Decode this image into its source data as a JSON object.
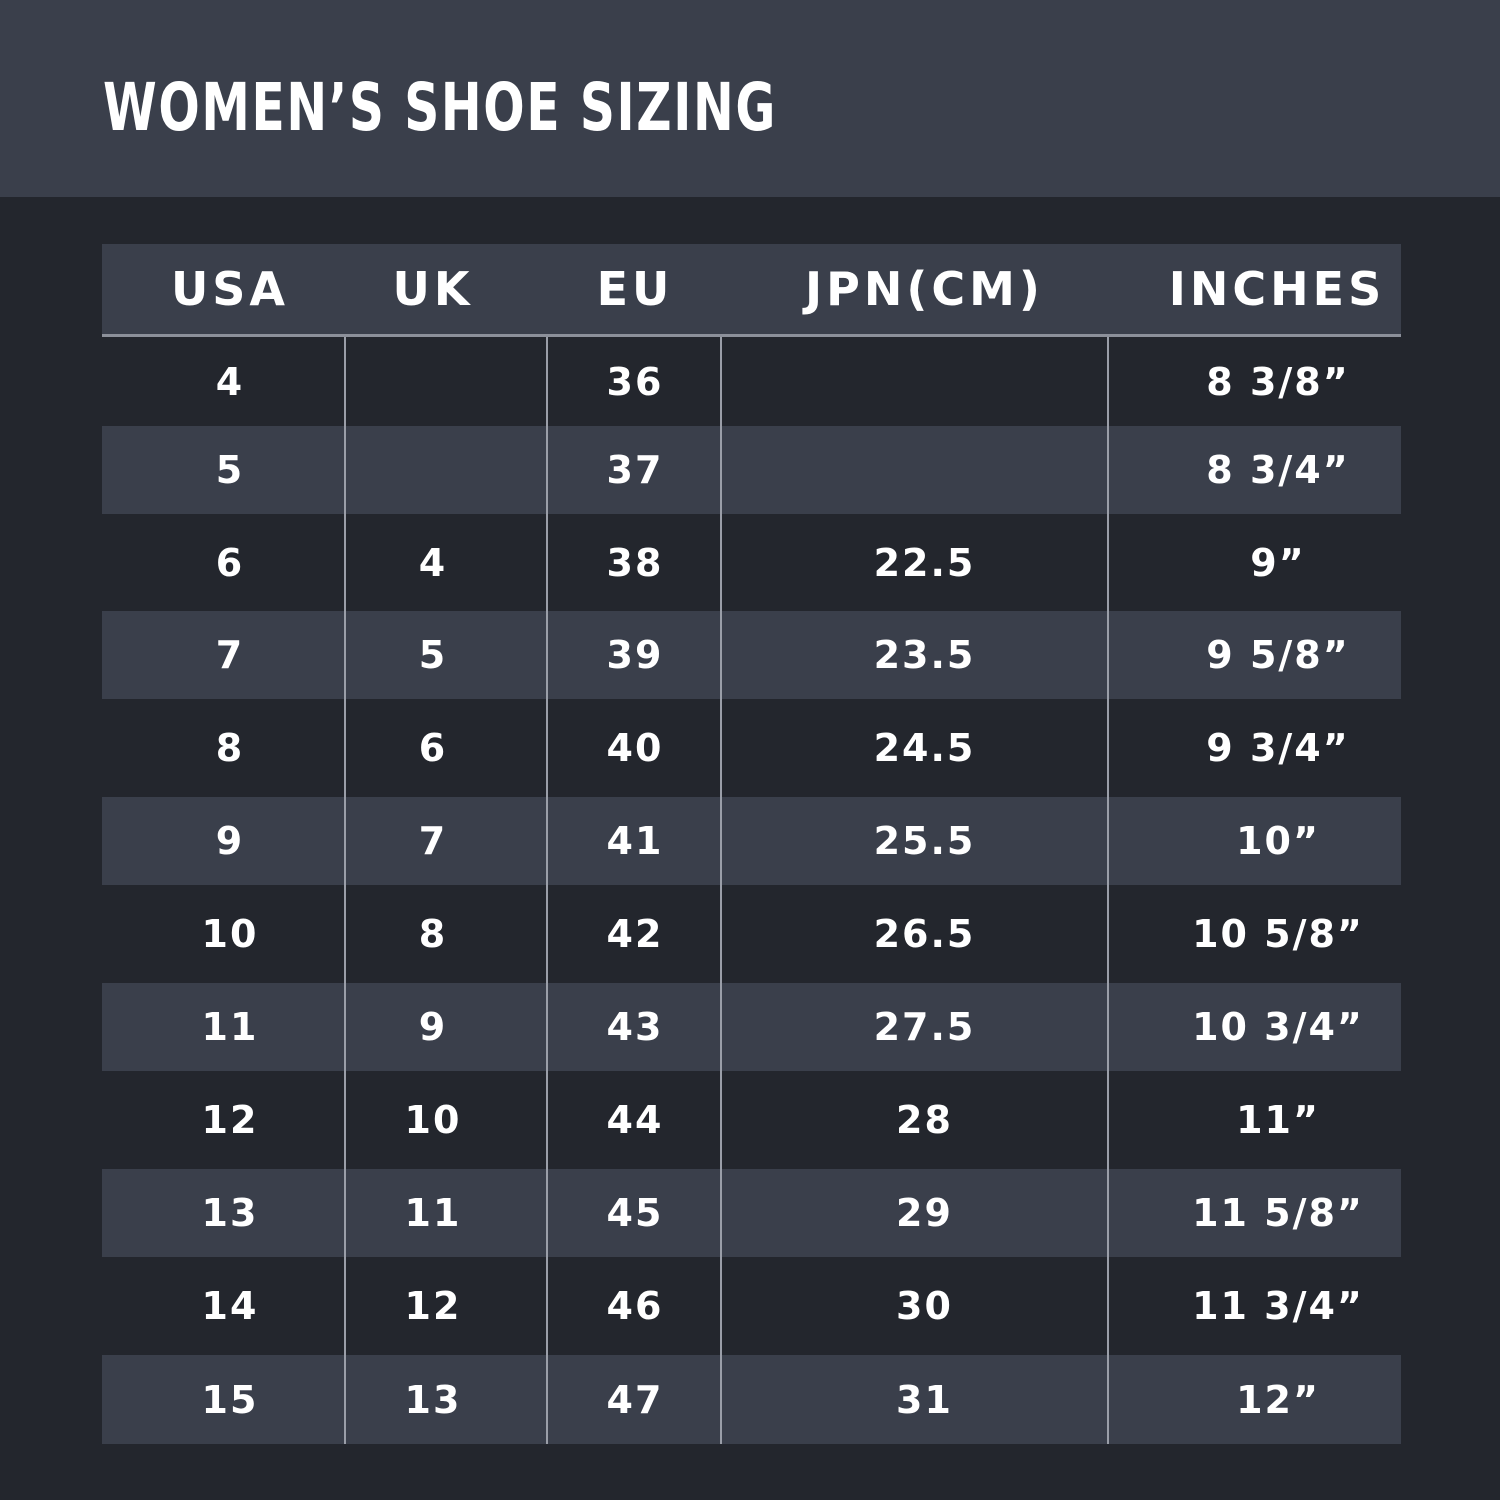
{
  "title": "WOMEN’S SHOE SIZING",
  "columns": [
    "USA",
    "UK",
    "EU",
    "JPN(CM)",
    "INCHES"
  ],
  "rows": [
    [
      "4",
      "",
      "36",
      "",
      "8 3/8”"
    ],
    [
      "5",
      "",
      "37",
      "",
      "8 3/4”"
    ],
    [
      "6",
      "4",
      "38",
      "22.5",
      "9”"
    ],
    [
      "7",
      "5",
      "39",
      "23.5",
      "9 5/8”"
    ],
    [
      "8",
      "6",
      "40",
      "24.5",
      "9 3/4”"
    ],
    [
      "9",
      "7",
      "41",
      "25.5",
      "10”"
    ],
    [
      "10",
      "8",
      "42",
      "26.5",
      "10 5/8”"
    ],
    [
      "11",
      "9",
      "43",
      "27.5",
      "10 3/4”"
    ],
    [
      "12",
      "10",
      "44",
      "28",
      "11”"
    ],
    [
      "13",
      "11",
      "45",
      "29",
      "11 5/8”"
    ],
    [
      "14",
      "12",
      "46",
      "30",
      "11 3/4”"
    ],
    [
      "15",
      "13",
      "47",
      "31",
      "12”"
    ]
  ],
  "colors": {
    "background": "#23262d",
    "band": "#3a3f4b",
    "text": "#ffffff",
    "rule": "#9a9ea8"
  }
}
